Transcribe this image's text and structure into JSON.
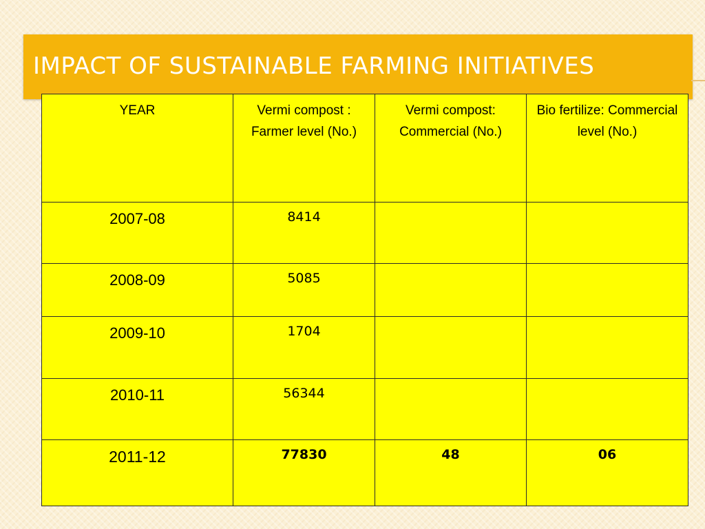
{
  "slide": {
    "title": "Impact of Sustainable Farming Initiatives"
  },
  "table": {
    "headers": [
      "YEAR",
      "Vermi compost : Farmer level (No.)",
      "Vermi compost: Commercial (No.)",
      "Bio fertilize: Commercial level (No.)"
    ],
    "rows": [
      [
        "2007-08",
        "8414",
        "",
        ""
      ],
      [
        "2008-09",
        "5085",
        "",
        ""
      ],
      [
        "2009-10",
        "1704",
        "",
        ""
      ],
      [
        "2010-11",
        "56344",
        "",
        ""
      ],
      [
        "2011-12",
        "77830",
        "48",
        "06"
      ]
    ]
  },
  "colors": {
    "title_bar": "#f5b40a",
    "table_background": "#ffff00",
    "title_text": "#ffffff"
  }
}
